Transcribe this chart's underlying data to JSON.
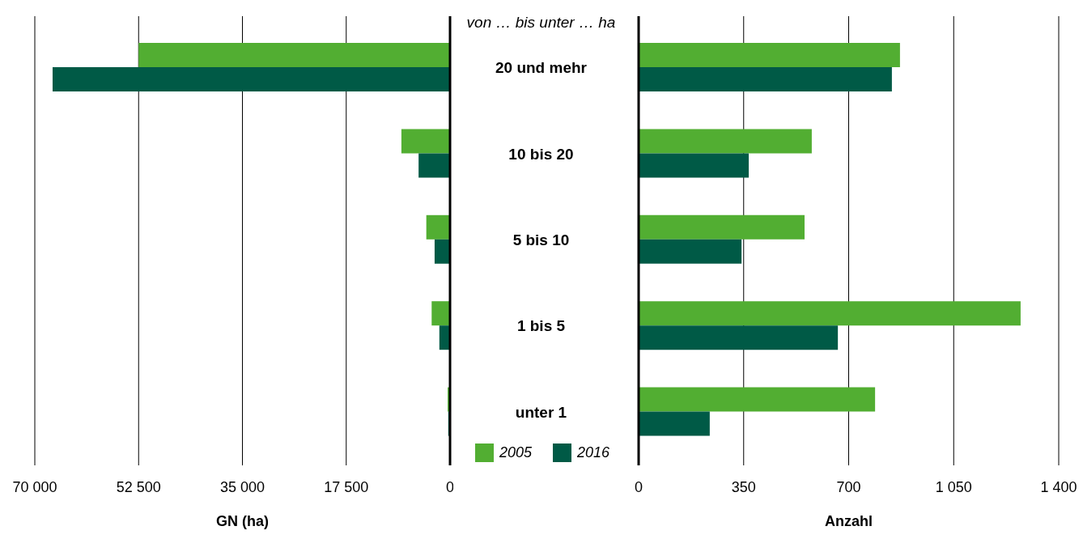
{
  "chart_data": [
    {
      "type": "bar",
      "orientation": "horizontal",
      "categories": [
        null,
        null,
        null,
        null,
        null
      ],
      "xlabel": "GN (ha)",
      "xlim": [
        70000,
        0
      ],
      "xticks": [
        {
          "value": 70000,
          "label": "70 000"
        },
        {
          "value": 52500,
          "label": "52 500"
        },
        {
          "value": 35000,
          "label": "35 000"
        },
        {
          "value": 17500,
          "label": "17 500"
        },
        0
      ],
      "grid": "x",
      "tick_labels": "x",
      "legend": "bottom right",
      "series": [
        {
          "name": "2005",
          "color": "#52ae32",
          "values": [
            52500,
            8200,
            4000,
            3100,
            400
          ]
        },
        {
          "name": "2016",
          "color": "#005a46",
          "values": [
            67000,
            5300,
            2600,
            1800,
            300
          ]
        }
      ]
    },
    {
      "type": "bar",
      "orientation": "horizontal",
      "categories": [
        "20 und mehr",
        "10 bis 20",
        "5 bis 10",
        "1 bis 5",
        "unter 1"
      ],
      "ylabel": "von … bis unter … ha",
      "xlabel": "Anzahl",
      "xlim": [
        0,
        1400
      ],
      "xticks": [
        0,
        350,
        700,
        {
          "value": 1050,
          "label": "1 050"
        },
        {
          "value": 1400,
          "label": "1 400"
        }
      ],
      "grid": "x",
      "series": [
        {
          "color": "#52ae32",
          "values": [
            871,
            577,
            553,
            1273,
            788
          ]
        },
        {
          "color": "#005a46",
          "values": [
            844,
            367,
            343,
            664,
            237
          ]
        }
      ]
    }
  ]
}
